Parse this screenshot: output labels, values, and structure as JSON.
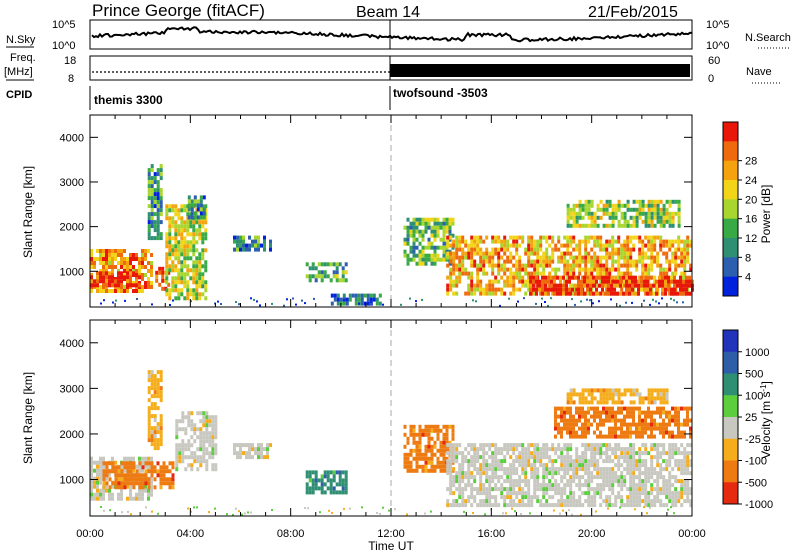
{
  "header": {
    "station": "Prince George (fitACF)",
    "beam": "Beam 14",
    "date": "21/Feb/2015"
  },
  "strips": {
    "nsky_label": "N.Sky",
    "nsky_tick_top": "10^5",
    "nsky_tick_bottom": "10^0",
    "nsearch_label": "N.Search",
    "nsearch_tick_top": "10^5",
    "nsearch_tick_bottom": "10^0",
    "freq_label_line1": "Freq.",
    "freq_label_line2": "[MHz]",
    "freq_tick_top": "18",
    "freq_tick_bottom": "8",
    "nave_label": "Nave",
    "nave_tick_top": "60",
    "nave_tick_bottom": "0",
    "cpid_label": "CPID",
    "cpid_segments": [
      {
        "name": "themis 3300",
        "start_hour": 0
      },
      {
        "name": "twofsound -3503",
        "start_hour": 12
      }
    ]
  },
  "chart_data": [
    {
      "type": "heatmap",
      "quantity": "power",
      "xlabel": "",
      "ylabel": "Slant Range [km]",
      "xlim": [
        0,
        24
      ],
      "ylim": [
        200,
        4500
      ],
      "yticks": [
        "1000",
        "2000",
        "3000",
        "4000"
      ],
      "colorbar": {
        "label": "Power [dB]",
        "ticks": [
          "4",
          "8",
          "12",
          "16",
          "20",
          "24",
          "28"
        ],
        "colors": [
          "#0022dd",
          "#2c5fb0",
          "#2f8f72",
          "#37a945",
          "#a8d62e",
          "#f2d418",
          "#f4a20e",
          "#ee6a0d",
          "#e8170a"
        ]
      },
      "regions": [
        {
          "t": [
            0.0,
            2.5
          ],
          "r": [
            600,
            1500
          ],
          "level": 0.75
        },
        {
          "t": [
            0.0,
            2.0
          ],
          "r": [
            700,
            1000
          ],
          "level": 0.95
        },
        {
          "t": [
            2.6,
            3.1
          ],
          "r": [
            650,
            1100
          ],
          "level": 0.9
        },
        {
          "t": [
            3.0,
            4.6
          ],
          "r": [
            400,
            2500
          ],
          "level": 0.55
        },
        {
          "t": [
            2.3,
            2.8
          ],
          "r": [
            1700,
            3400
          ],
          "level": 0.3
        },
        {
          "t": [
            3.9,
            4.5
          ],
          "r": [
            2200,
            2700
          ],
          "level": 0.25
        },
        {
          "t": [
            5.7,
            7.2
          ],
          "r": [
            1500,
            1800
          ],
          "level": 0.3
        },
        {
          "t": [
            8.6,
            10.2
          ],
          "r": [
            800,
            1200
          ],
          "level": 0.35
        },
        {
          "t": [
            9.6,
            11.6
          ],
          "r": [
            250,
            500
          ],
          "level": 0.2
        },
        {
          "t": [
            12.5,
            14.5
          ],
          "r": [
            1200,
            2200
          ],
          "level": 0.4
        },
        {
          "t": [
            14.2,
            24.0
          ],
          "r": [
            500,
            1800
          ],
          "level": 0.7
        },
        {
          "t": [
            17.5,
            24.0
          ],
          "r": [
            500,
            900
          ],
          "level": 0.95
        },
        {
          "t": [
            19.0,
            23.5
          ],
          "r": [
            2000,
            2600
          ],
          "level": 0.5
        }
      ]
    },
    {
      "type": "heatmap",
      "quantity": "velocity",
      "xlabel": "Time UT",
      "ylabel": "Slant Range [km]",
      "xlim": [
        0,
        24
      ],
      "ylim": [
        200,
        4500
      ],
      "xticks": [
        "00:00",
        "04:00",
        "08:00",
        "12:00",
        "16:00",
        "20:00",
        "00:00"
      ],
      "yticks": [
        "1000",
        "2000",
        "3000",
        "4000"
      ],
      "colorbar": {
        "label": "Velocity [m s^-1]",
        "ticks": [
          "1000",
          "500",
          "100",
          "25",
          "-25",
          "-100",
          "-500",
          "-1000"
        ],
        "colors": [
          "#2233bb",
          "#2f5ea8",
          "#2f8f72",
          "#5ccd3c",
          "#c8c8c0",
          "#f5ad1c",
          "#ee7a12",
          "#e62a10"
        ]
      },
      "regions": [
        {
          "t": [
            0.0,
            2.5
          ],
          "r": [
            600,
            1500
          ],
          "value": "ground"
        },
        {
          "t": [
            0.5,
            3.3
          ],
          "r": [
            800,
            1400
          ],
          "value": "-500"
        },
        {
          "t": [
            3.4,
            5.0
          ],
          "r": [
            1200,
            2500
          ],
          "value": "ground"
        },
        {
          "t": [
            2.3,
            2.8
          ],
          "r": [
            1700,
            3400
          ],
          "value": "-100"
        },
        {
          "t": [
            5.7,
            7.2
          ],
          "r": [
            1500,
            1800
          ],
          "value": "ground"
        },
        {
          "t": [
            8.6,
            10.2
          ],
          "r": [
            700,
            1200
          ],
          "value": "100"
        },
        {
          "t": [
            12.5,
            14.5
          ],
          "r": [
            1200,
            2200
          ],
          "value": "-500"
        },
        {
          "t": [
            14.2,
            24.0
          ],
          "r": [
            400,
            1800
          ],
          "value": "ground"
        },
        {
          "t": [
            18.5,
            24.0
          ],
          "r": [
            1900,
            2600
          ],
          "value": "-500"
        },
        {
          "t": [
            19.0,
            23.0
          ],
          "r": [
            2700,
            3000
          ],
          "value": "-100"
        }
      ]
    }
  ]
}
